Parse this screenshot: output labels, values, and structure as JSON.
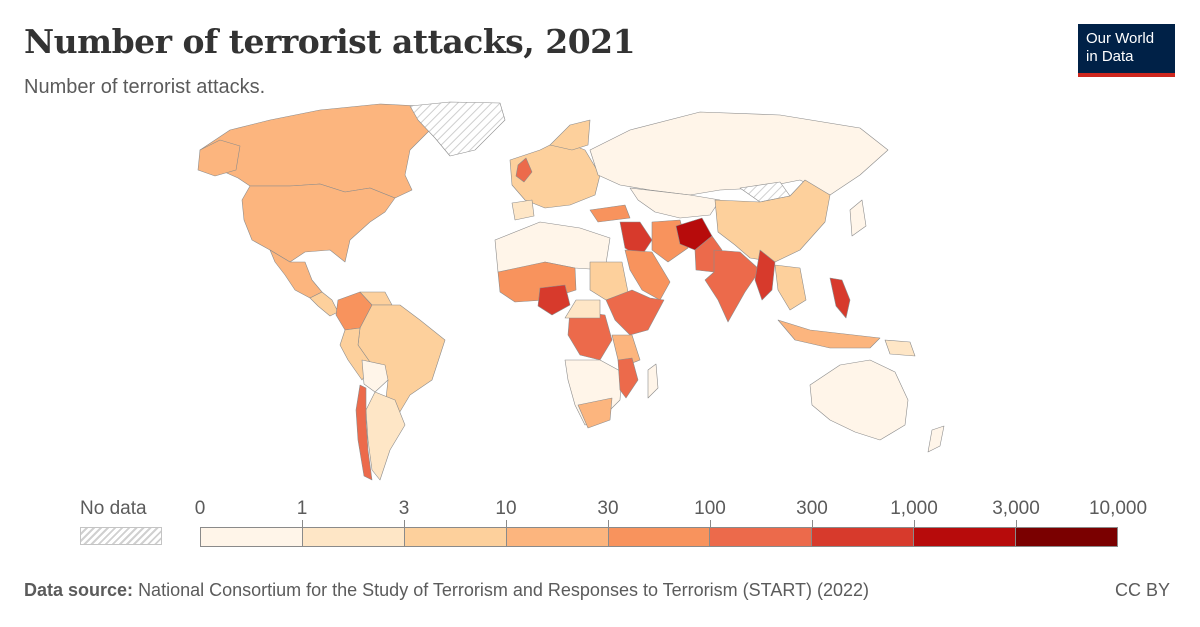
{
  "header": {
    "title": "Number of terrorist attacks, 2021",
    "subtitle": "Number of terrorist attacks.",
    "logo_line1": "Our World",
    "logo_line2": "in Data"
  },
  "legend": {
    "no_data_label": "No data",
    "ticks": [
      "0",
      "1",
      "3",
      "10",
      "30",
      "100",
      "300",
      "1,000",
      "3,000",
      "10,000"
    ],
    "colors": [
      "#fff5e9",
      "#fee6c6",
      "#fdd09c",
      "#fcb57e",
      "#f8935d",
      "#ec6a4b",
      "#d73a2c",
      "#b70b0b",
      "#7a0000"
    ]
  },
  "map_data": {
    "year": 2021,
    "value_bins": [
      "0-1",
      "1-3",
      "3-10",
      "10-30",
      "30-100",
      "100-300",
      "300-1000",
      "1000-3000",
      "3000-10000"
    ]
  },
  "footer": {
    "source_label": "Data source:",
    "source_text": "National Consortium for the Study of Terrorism and Responses to Terrorism (START) (2022)",
    "license": "CC BY"
  }
}
